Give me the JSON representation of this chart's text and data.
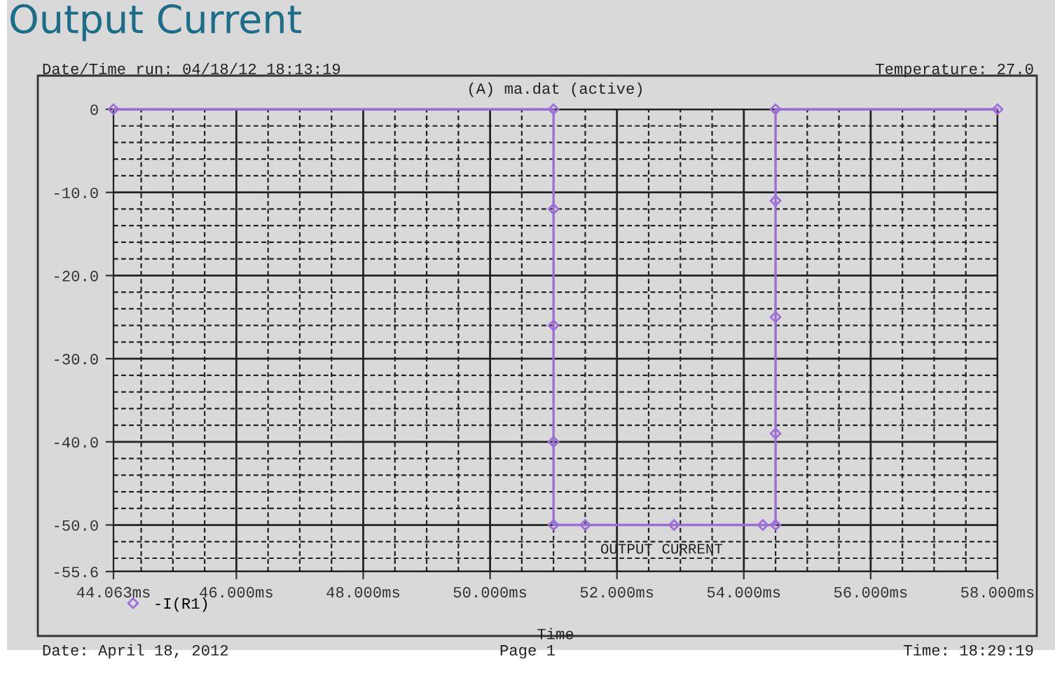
{
  "chart_data": {
    "type": "line",
    "title": "Output Current",
    "subtitle": "(A) ma.dat (active)",
    "xlabel": "Time",
    "annotations": [
      "Date/Time run: 04/18/12 18:13:19",
      "Temperature: 27.0",
      "OUTPUT CURRENT",
      "Date: April 18, 2012",
      "Page 1",
      "Time: 18:29:19"
    ],
    "series": [
      {
        "name": "-I(R1)",
        "color": "#9b6fd6",
        "x": [
          44.063,
          51.0,
          51.0,
          51.0,
          51.0,
          51.0,
          51.5,
          52.9,
          54.3,
          54.5,
          54.5,
          54.5,
          54.5,
          54.5,
          58.0
        ],
        "values": [
          0,
          0,
          -12,
          -26,
          -40,
          -50,
          -50,
          -50,
          -50,
          -50,
          -39,
          -25,
          -11,
          0,
          0
        ]
      }
    ],
    "xlim": [
      44.063,
      58.0
    ],
    "xticks": [
      {
        "value": 44.063,
        "label": "44.063ms"
      },
      {
        "value": 46,
        "label": "46.000ms"
      },
      {
        "value": 48,
        "label": "48.000ms"
      },
      {
        "value": 50,
        "label": "50.000ms"
      },
      {
        "value": 52,
        "label": "52.000ms"
      },
      {
        "value": 54,
        "label": "54.000ms"
      },
      {
        "value": 56,
        "label": "56.000ms"
      },
      {
        "value": 58,
        "label": "58.000ms"
      }
    ],
    "ylim": [
      -55.6,
      0
    ],
    "yticks": [
      0,
      {
        "value": -10,
        "label": "-10.0"
      },
      {
        "value": -20,
        "label": "-20.0"
      },
      {
        "value": -30,
        "label": "-30.0"
      },
      {
        "value": -40,
        "label": "-40.0"
      },
      {
        "value": -50,
        "label": "-50.0"
      },
      {
        "value": -55.6,
        "label": "-55.6"
      }
    ],
    "grid": true,
    "legend": "bottom left",
    "marker": "diamond",
    "line_style": "solid"
  }
}
